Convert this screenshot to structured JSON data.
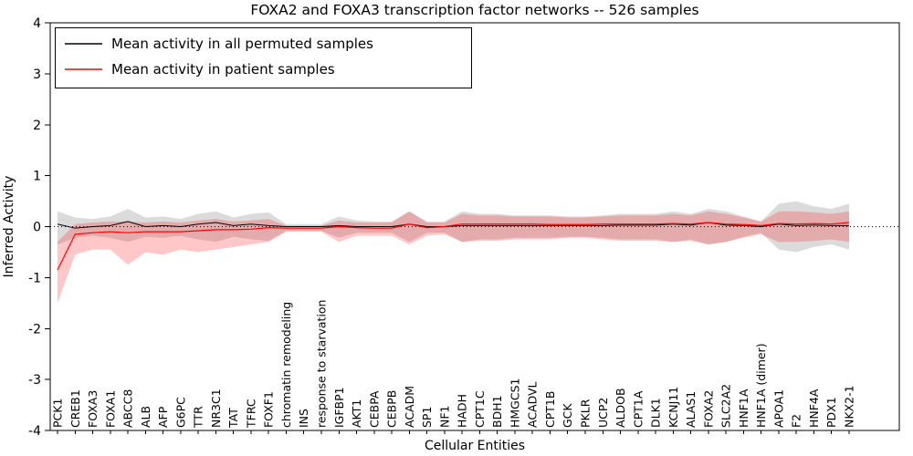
{
  "chart_data": {
    "type": "line",
    "title": "FOXA2 and FOXA3 transcription factor networks -- 526 samples",
    "xlabel": "Cellular Entities",
    "ylabel": "Inferred Activity",
    "ylim": [
      -4,
      4
    ],
    "yticks": [
      -4,
      -3,
      -2,
      -1,
      0,
      1,
      2,
      3,
      4
    ],
    "grid": false,
    "legend_position": "upper left",
    "zero_line": {
      "style": "dotted",
      "color": "#000000",
      "y": 0
    },
    "categories": [
      "PCK1",
      "CREB1",
      "FOXA3",
      "FOXA1",
      "ABCC8",
      "ALB",
      "AFP",
      "G6PC",
      "TTR",
      "NR3C1",
      "TAT",
      "TFRC",
      "FOXF1",
      "chromatin remodeling",
      "INS",
      "response to starvation",
      "IGFBP1",
      "AKT1",
      "CEBPA",
      "CEBPB",
      "ACADM",
      "SP1",
      "NF1",
      "HADH",
      "CPT1C",
      "BDH1",
      "HMGCS1",
      "ACADVL",
      "CPT1B",
      "GCK",
      "PKLR",
      "UCP2",
      "ALDOB",
      "CPT1A",
      "DLK1",
      "KCNJ11",
      "ALAS1",
      "FOXA2",
      "SLC2A2",
      "HNF1A",
      "HNF1A (dimer)",
      "APOA1",
      "F2",
      "HNF4A",
      "PDX1",
      "NKX2-1"
    ],
    "series": [
      {
        "name": "Mean activity in all permuted samples",
        "color": "#000000",
        "line_width": 1,
        "band_color": "#999999",
        "band_opacity": 0.35,
        "values": [
          0.05,
          -0.03,
          0.0,
          0.02,
          0.1,
          0.0,
          0.02,
          0.0,
          0.05,
          0.08,
          0.02,
          0.05,
          0.02,
          0.0,
          0.0,
          0.0,
          0.02,
          0.0,
          0.0,
          0.0,
          0.05,
          0.0,
          0.0,
          0.02,
          0.02,
          0.02,
          0.02,
          0.02,
          0.02,
          0.02,
          0.02,
          0.02,
          0.03,
          0.03,
          0.03,
          0.05,
          0.03,
          0.08,
          0.03,
          0.02,
          0.0,
          0.05,
          0.02,
          0.03,
          0.02,
          0.02
        ],
        "band_upper": [
          0.3,
          0.18,
          0.15,
          0.2,
          0.35,
          0.18,
          0.2,
          0.15,
          0.25,
          0.3,
          0.18,
          0.25,
          0.28,
          0.05,
          0.05,
          0.05,
          0.2,
          0.12,
          0.1,
          0.1,
          0.3,
          0.1,
          0.1,
          0.3,
          0.25,
          0.25,
          0.22,
          0.22,
          0.22,
          0.2,
          0.2,
          0.22,
          0.25,
          0.25,
          0.25,
          0.3,
          0.25,
          0.35,
          0.3,
          0.2,
          0.1,
          0.45,
          0.5,
          0.4,
          0.35,
          0.45
        ],
        "band_lower": [
          -0.35,
          -0.22,
          -0.18,
          -0.22,
          -0.3,
          -0.2,
          -0.22,
          -0.18,
          -0.25,
          -0.3,
          -0.2,
          -0.25,
          -0.28,
          -0.08,
          -0.08,
          -0.08,
          -0.22,
          -0.12,
          -0.12,
          -0.12,
          -0.3,
          -0.12,
          -0.12,
          -0.3,
          -0.25,
          -0.25,
          -0.22,
          -0.22,
          -0.22,
          -0.2,
          -0.2,
          -0.22,
          -0.25,
          -0.25,
          -0.25,
          -0.3,
          -0.25,
          -0.35,
          -0.3,
          -0.2,
          -0.12,
          -0.45,
          -0.5,
          -0.4,
          -0.35,
          -0.45
        ]
      },
      {
        "name": "Mean activity in patient samples",
        "color": "#ff0000",
        "line_width": 1.2,
        "band_color": "#ff0000",
        "band_opacity": 0.22,
        "values": [
          -0.85,
          -0.15,
          -0.12,
          -0.1,
          -0.12,
          -0.1,
          -0.1,
          -0.1,
          -0.08,
          -0.06,
          -0.06,
          -0.05,
          -0.02,
          -0.03,
          -0.03,
          -0.03,
          0.0,
          -0.02,
          -0.03,
          -0.03,
          0.05,
          -0.02,
          0.0,
          0.05,
          0.05,
          0.05,
          0.05,
          0.05,
          0.04,
          0.04,
          0.04,
          0.05,
          0.05,
          0.05,
          0.05,
          0.06,
          0.05,
          0.08,
          0.05,
          0.04,
          0.02,
          0.06,
          0.05,
          0.06,
          0.05,
          0.08
        ],
        "band_upper": [
          -0.3,
          0.05,
          0.08,
          0.1,
          0.1,
          0.08,
          0.1,
          0.08,
          0.12,
          0.15,
          0.1,
          0.12,
          0.15,
          0.02,
          0.02,
          0.02,
          0.12,
          0.08,
          0.08,
          0.08,
          0.3,
          0.08,
          0.08,
          0.25,
          0.22,
          0.22,
          0.2,
          0.2,
          0.2,
          0.18,
          0.18,
          0.2,
          0.22,
          0.22,
          0.22,
          0.25,
          0.22,
          0.3,
          0.25,
          0.18,
          0.1,
          0.3,
          0.3,
          0.28,
          0.25,
          0.3
        ],
        "band_lower": [
          -1.5,
          -0.55,
          -0.45,
          -0.45,
          -0.75,
          -0.5,
          -0.55,
          -0.45,
          -0.5,
          -0.45,
          -0.4,
          -0.35,
          -0.3,
          -0.1,
          -0.1,
          -0.1,
          -0.3,
          -0.18,
          -0.18,
          -0.18,
          -0.35,
          -0.18,
          -0.15,
          -0.3,
          -0.28,
          -0.28,
          -0.25,
          -0.25,
          -0.25,
          -0.22,
          -0.22,
          -0.25,
          -0.28,
          -0.28,
          -0.28,
          -0.3,
          -0.28,
          -0.35,
          -0.3,
          -0.22,
          -0.15,
          -0.3,
          -0.3,
          -0.28,
          -0.25,
          -0.3
        ]
      }
    ]
  }
}
